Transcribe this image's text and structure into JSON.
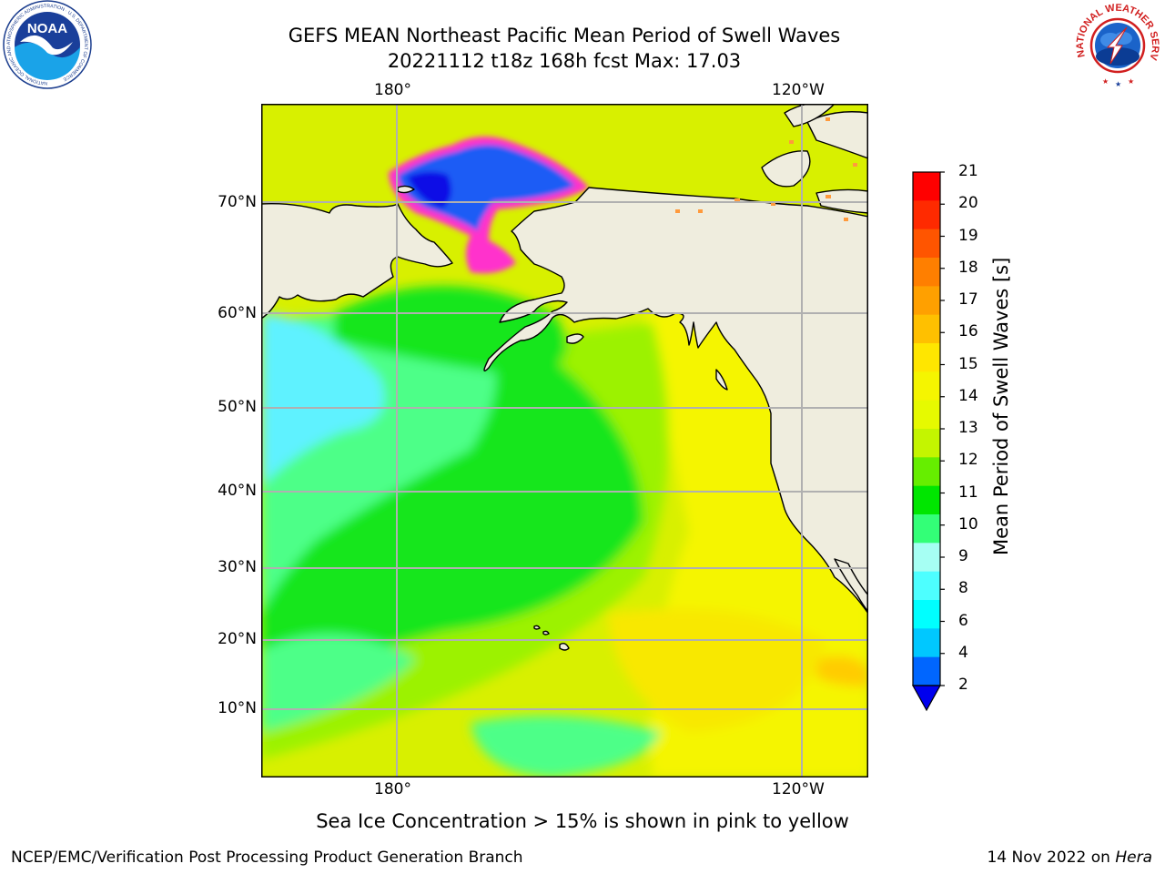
{
  "header": {
    "title_line1": "GEFS MEAN Northeast Pacific Mean Period of Swell Waves",
    "title_line2": "20221112 t18z 168h fcst   Max: 17.03"
  },
  "logos": {
    "left": {
      "name": "NOAA",
      "text": "NOAA",
      "ring_text": "NATIONAL OCEANIC AND ATMOSPHERIC ADMINISTRATION · U.S. DEPARTMENT OF COMMERCE"
    },
    "right": {
      "name": "National Weather Service",
      "ring_text": "NATIONAL WEATHER SERVICE"
    }
  },
  "map": {
    "top_lon_labels": [
      "180°",
      "120°W"
    ],
    "bottom_lon_labels": [
      "180°",
      "120°W"
    ],
    "lat_labels": [
      "70°N",
      "60°N",
      "50°N",
      "40°N",
      "30°N",
      "20°N",
      "10°N"
    ],
    "colors": {
      "land": "#efedde",
      "ice_field": "#1a5cf5",
      "ice_deep": "#0a10e6",
      "ice_rim": "#ff33cc",
      "cyan": "#5ef2ff",
      "light_green": "#4dff88",
      "green": "#19e61a",
      "lime": "#9cf200",
      "yellow_green": "#d8f000",
      "yellow": "#f5f500",
      "orange": "#ffcc00",
      "gridline": "#b0b0b0"
    }
  },
  "colorbar": {
    "label": "Mean Period of Swell Waves [s]",
    "ticks": [
      "21",
      "20",
      "19",
      "18",
      "17",
      "16",
      "15",
      "14",
      "13",
      "12",
      "11",
      "10",
      "9",
      "8",
      "6",
      "4",
      "2"
    ],
    "colors_top_to_bottom": [
      "#ff0000",
      "#ff2a00",
      "#ff5500",
      "#ff7f00",
      "#ffa000",
      "#ffc000",
      "#ffe600",
      "#f5f500",
      "#e6fa00",
      "#c4f500",
      "#66ee00",
      "#00e600",
      "#33ff77",
      "#a6fff3",
      "#4dffff",
      "#00ffff",
      "#00c8ff",
      "#0066ff"
    ],
    "extend_color": "#0000ee"
  },
  "caption": "Sea Ice Concentration > 15% is shown in pink to yellow",
  "footer": {
    "left": "NCEP/EMC/Verification Post Processing Product Generation Branch",
    "right_date": "14 Nov 2022 on ",
    "right_host": "Hera"
  }
}
